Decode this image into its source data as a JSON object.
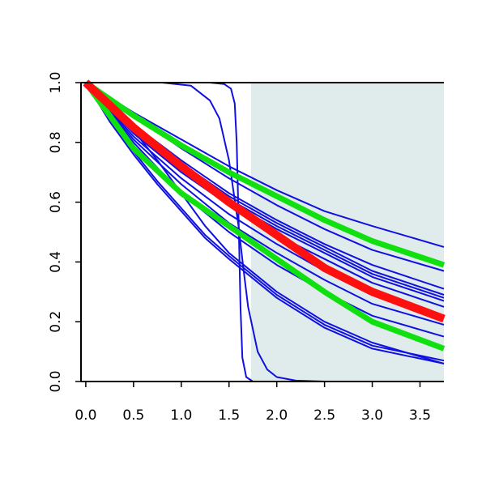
{
  "chart_data": {
    "type": "line",
    "title": "",
    "xlabel": "",
    "ylabel": "",
    "xlim": [
      -0.05,
      3.75
    ],
    "ylim": [
      0.0,
      1.0
    ],
    "x_ticks": [
      0.0,
      0.5,
      1.0,
      1.5,
      2.0,
      2.5,
      3.0,
      3.5
    ],
    "x_tick_labels": [
      "0.0",
      "0.5",
      "1.0",
      "1.5",
      "2.0",
      "2.5",
      "3.0",
      "3.5"
    ],
    "y_ticks": [
      0.0,
      0.2,
      0.4,
      0.6,
      0.8,
      1.0
    ],
    "y_tick_labels": [
      "0.0",
      "0.2",
      "0.4",
      "0.6",
      "0.8",
      "1.0"
    ],
    "grid": false,
    "legend": "none",
    "shaded_region": {
      "x_start": 1.73,
      "x_end": 3.75,
      "color": "#e0ecec"
    },
    "colors": {
      "blue": "#1010e0",
      "red": "#ff1010",
      "green": "#10e010"
    },
    "series": [
      {
        "color": "blue",
        "width": 2,
        "x": [
          0,
          0.5,
          1.0,
          1.5,
          2.0,
          2.5,
          3.0,
          3.75
        ],
        "y": [
          1.0,
          0.9,
          0.81,
          0.72,
          0.64,
          0.57,
          0.52,
          0.45
        ]
      },
      {
        "color": "blue",
        "width": 2,
        "x": [
          0,
          0.5,
          1.0,
          1.5,
          2.0,
          2.5,
          3.0,
          3.75
        ],
        "y": [
          1.0,
          0.89,
          0.78,
          0.68,
          0.59,
          0.51,
          0.44,
          0.37
        ]
      },
      {
        "color": "blue",
        "width": 2,
        "x": [
          0,
          0.5,
          1.0,
          1.5,
          2.0,
          2.5,
          3.0,
          3.75
        ],
        "y": [
          1.0,
          0.86,
          0.74,
          0.63,
          0.54,
          0.46,
          0.39,
          0.31
        ]
      },
      {
        "color": "blue",
        "width": 2,
        "x": [
          0,
          0.5,
          1.0,
          1.5,
          2.0,
          2.5,
          3.0,
          3.75
        ],
        "y": [
          1.0,
          0.85,
          0.73,
          0.62,
          0.53,
          0.45,
          0.37,
          0.29
        ]
      },
      {
        "color": "blue",
        "width": 2,
        "x": [
          0,
          0.5,
          1.0,
          1.5,
          2.0,
          2.5,
          3.0,
          3.75
        ],
        "y": [
          1.0,
          0.85,
          0.72,
          0.61,
          0.52,
          0.44,
          0.36,
          0.28
        ]
      },
      {
        "color": "blue",
        "width": 2,
        "x": [
          0,
          0.5,
          1.0,
          1.5,
          2.0,
          2.5,
          3.0,
          3.75
        ],
        "y": [
          1.0,
          0.84,
          0.71,
          0.6,
          0.51,
          0.43,
          0.35,
          0.27
        ]
      },
      {
        "color": "blue",
        "width": 2,
        "x": [
          0,
          0.5,
          1.0,
          1.5,
          2.0,
          2.5,
          3.0,
          3.75
        ],
        "y": [
          1.0,
          0.83,
          0.7,
          0.59,
          0.49,
          0.41,
          0.33,
          0.25
        ]
      },
      {
        "color": "blue",
        "width": 2,
        "x": [
          0,
          0.5,
          1.0,
          1.5,
          2.0,
          2.5,
          3.0,
          3.75
        ],
        "y": [
          1.0,
          0.82,
          0.68,
          0.56,
          0.46,
          0.37,
          0.29,
          0.22
        ]
      },
      {
        "color": "blue",
        "width": 2,
        "x": [
          0,
          0.5,
          1.0,
          1.5,
          2.0,
          2.5,
          3.0,
          3.75
        ],
        "y": [
          1.0,
          0.81,
          0.66,
          0.53,
          0.43,
          0.34,
          0.26,
          0.19
        ]
      },
      {
        "color": "blue",
        "width": 2,
        "x": [
          0,
          0.5,
          1.0,
          1.5,
          2.0,
          2.5,
          3.0,
          3.75
        ],
        "y": [
          1.0,
          0.8,
          0.63,
          0.5,
          0.39,
          0.3,
          0.22,
          0.15
        ]
      },
      {
        "color": "blue",
        "width": 2,
        "x": [
          0,
          0.25,
          0.5,
          0.75,
          1.0,
          1.25,
          1.5,
          2.0,
          2.5,
          3.0,
          3.75
        ],
        "y": [
          1.0,
          0.88,
          0.77,
          0.67,
          0.58,
          0.49,
          0.42,
          0.29,
          0.19,
          0.12,
          0.07
        ]
      },
      {
        "color": "blue",
        "width": 2,
        "x": [
          0,
          0.25,
          0.5,
          0.75,
          1.0,
          1.25,
          1.5,
          2.0,
          2.5,
          3.0,
          3.75
        ],
        "y": [
          1.0,
          0.87,
          0.76,
          0.66,
          0.57,
          0.48,
          0.41,
          0.28,
          0.18,
          0.11,
          0.06
        ]
      },
      {
        "color": "blue",
        "width": 2,
        "x": [
          0,
          0.25,
          0.5,
          0.75,
          1.0,
          1.25,
          1.5,
          2.0,
          2.5,
          3.0,
          3.75
        ],
        "y": [
          1.0,
          0.93,
          0.84,
          0.74,
          0.63,
          0.52,
          0.43,
          0.3,
          0.2,
          0.13,
          0.06
        ]
      },
      {
        "color": "blue",
        "width": 2,
        "x": [
          0,
          0.5,
          1.0,
          1.3,
          1.45,
          1.52,
          1.56,
          1.58,
          1.6,
          1.62,
          1.64,
          1.68,
          1.75,
          3.75
        ],
        "y": [
          1.0,
          1.0,
          1.0,
          1.0,
          0.995,
          0.98,
          0.93,
          0.8,
          0.55,
          0.25,
          0.08,
          0.015,
          0.0,
          0.0
        ]
      },
      {
        "color": "blue",
        "width": 2,
        "x": [
          0,
          0.8,
          1.1,
          1.3,
          1.4,
          1.5,
          1.6,
          1.65,
          1.7,
          1.8,
          1.9,
          2.0,
          2.2,
          2.5,
          3.75
        ],
        "y": [
          1.0,
          1.0,
          0.99,
          0.94,
          0.88,
          0.74,
          0.52,
          0.38,
          0.25,
          0.1,
          0.04,
          0.015,
          0.003,
          0.0,
          0.0
        ]
      },
      {
        "color": "green",
        "width": 7,
        "x": [
          0,
          0.5,
          1.0,
          1.5,
          2.0,
          2.5,
          3.0,
          3.75
        ],
        "y": [
          1.0,
          0.89,
          0.79,
          0.7,
          0.62,
          0.54,
          0.47,
          0.39
        ]
      },
      {
        "color": "green",
        "width": 7,
        "x": [
          0,
          0.5,
          1.0,
          1.5,
          2.0,
          2.5,
          3.0,
          3.75
        ],
        "y": [
          1.0,
          0.78,
          0.63,
          0.52,
          0.41,
          0.3,
          0.2,
          0.11
        ]
      },
      {
        "color": "red",
        "width": 10,
        "x": [
          0,
          0.5,
          1.0,
          1.5,
          2.0,
          2.5,
          3.0,
          3.75
        ],
        "y": [
          1.0,
          0.85,
          0.72,
          0.6,
          0.49,
          0.38,
          0.3,
          0.21
        ]
      }
    ]
  }
}
